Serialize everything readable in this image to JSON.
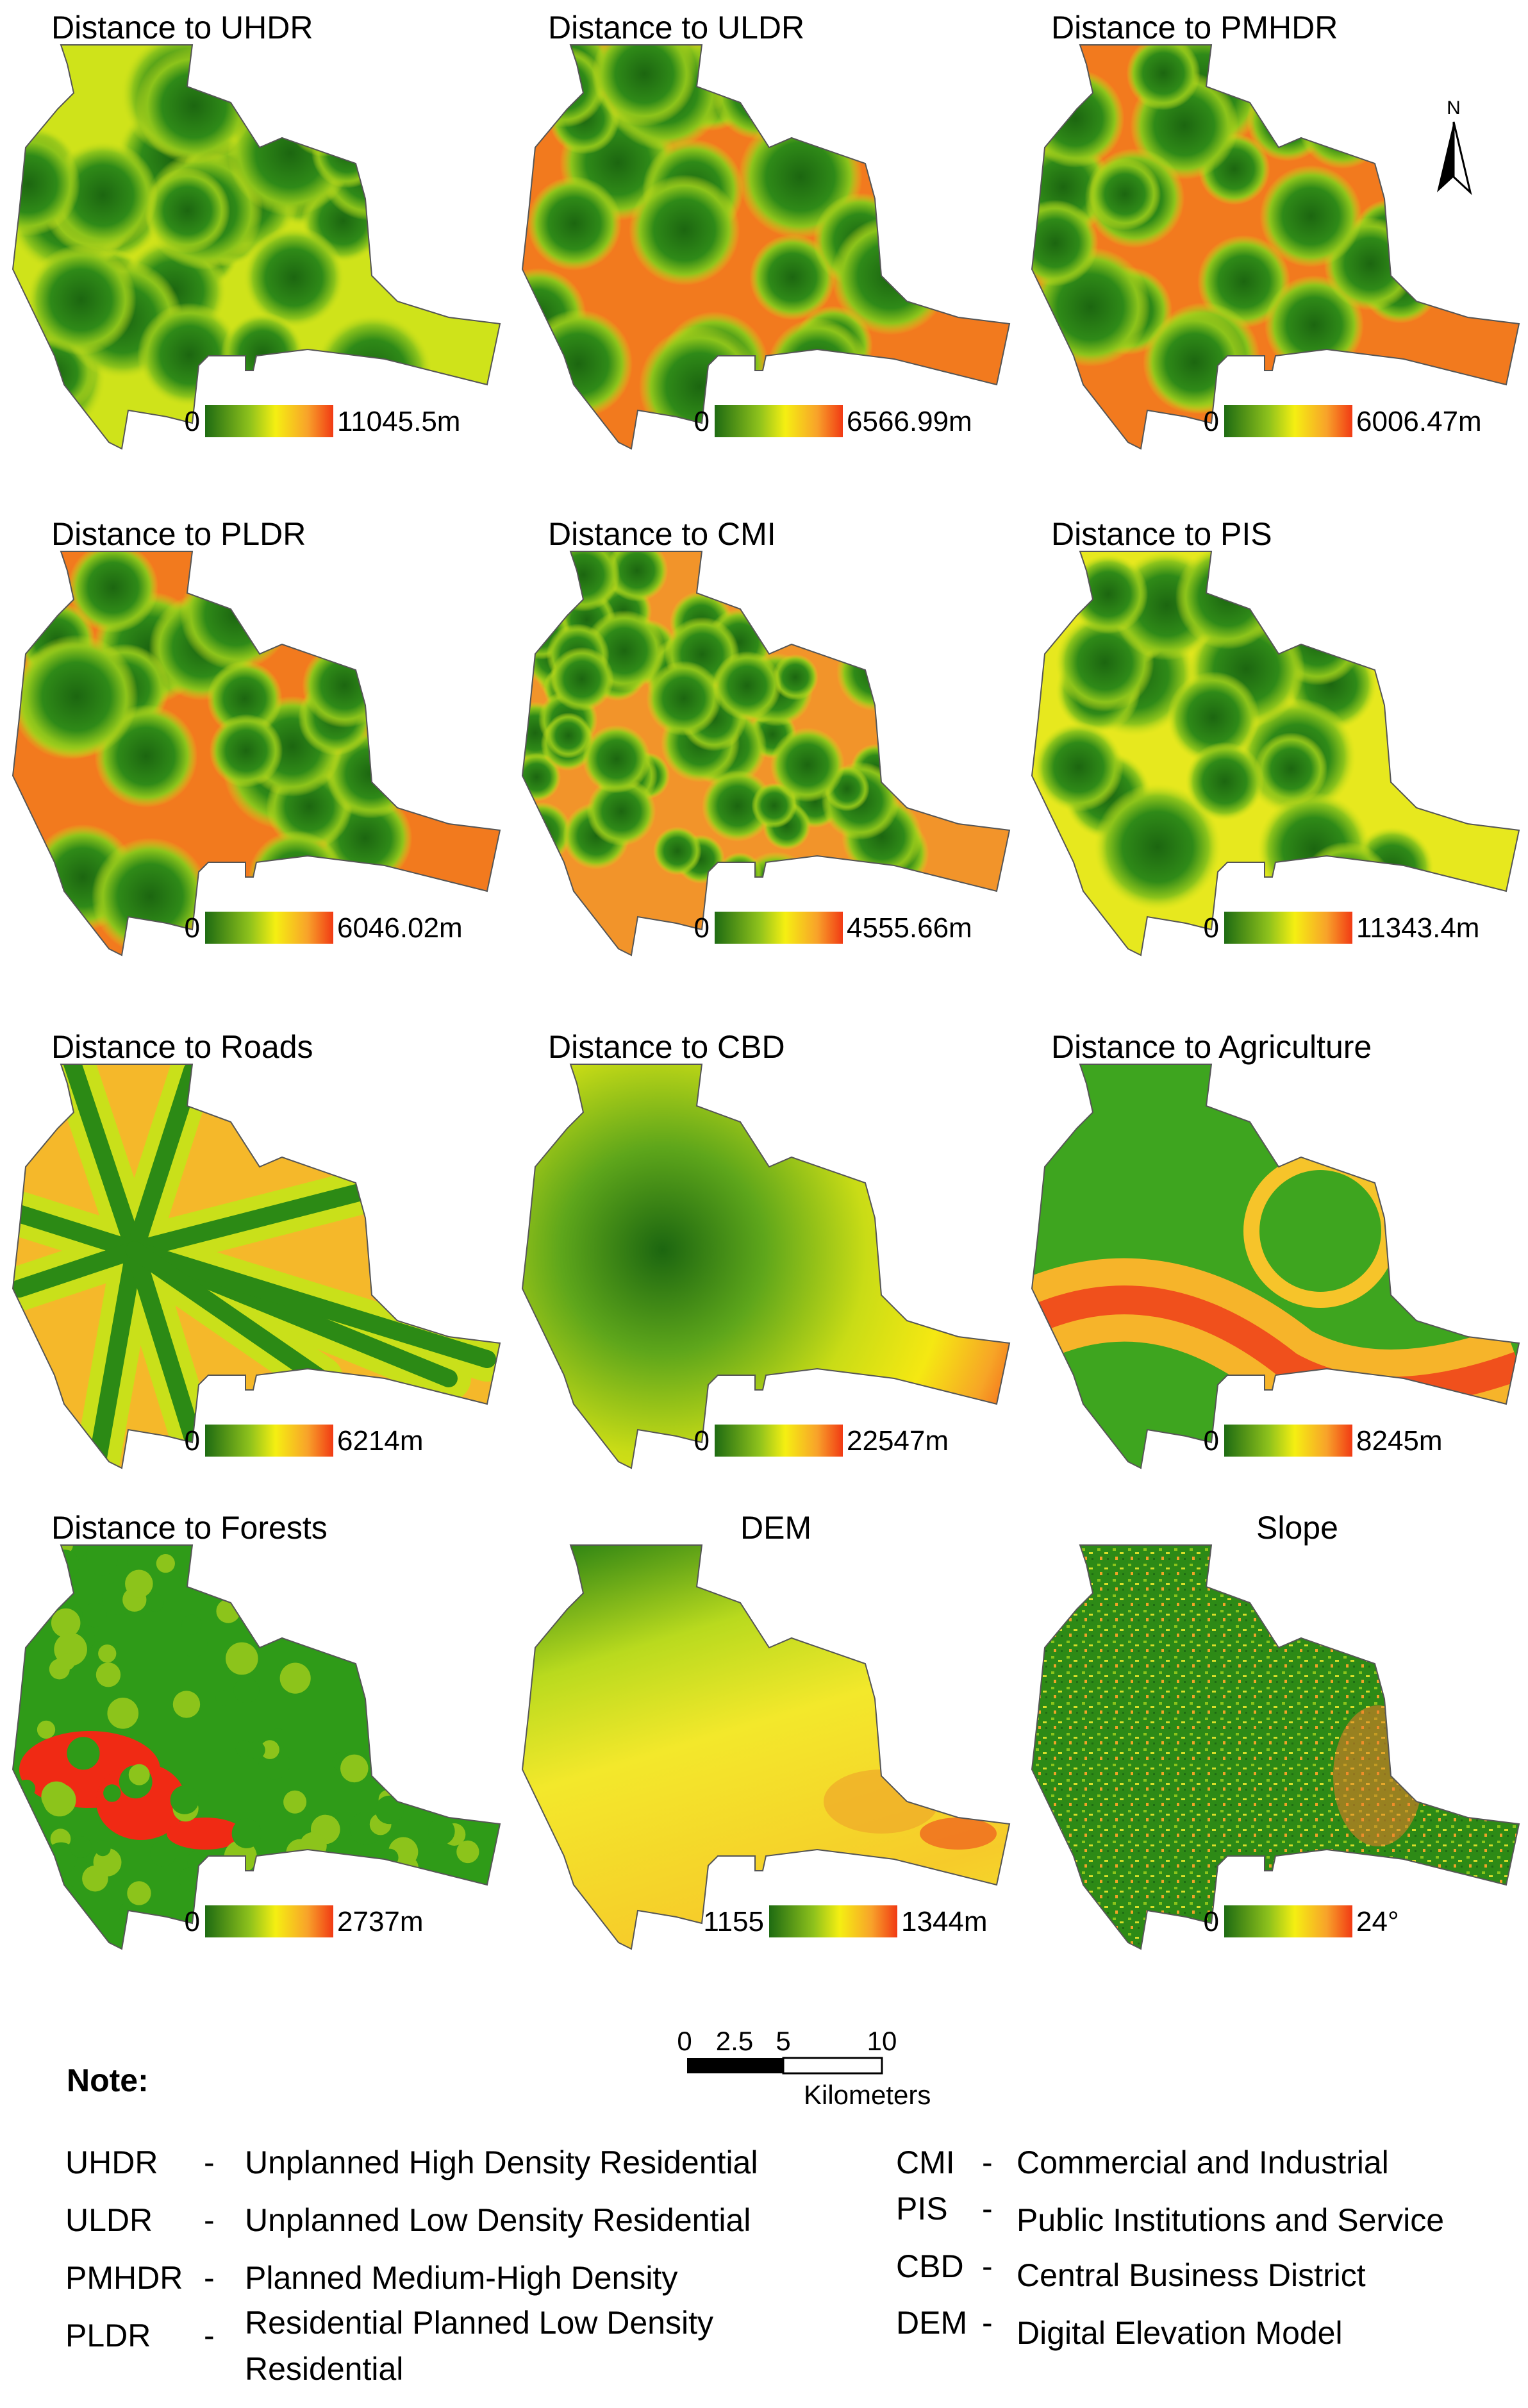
{
  "panels": [
    {
      "id": "uhdr",
      "title": "Distance to UHDR",
      "min": "0",
      "max": "11045.5m",
      "style": "buffer-green",
      "lowColor": "#1e6b12",
      "highColor": "#f13a14"
    },
    {
      "id": "uldr",
      "title": "Distance to ULDR",
      "min": "0",
      "max": "6566.99m",
      "style": "buffer-red",
      "lowColor": "#1e6b12",
      "highColor": "#f13a14"
    },
    {
      "id": "pmhdr",
      "title": "Distance to PMHDR",
      "min": "0",
      "max": "6006.47m",
      "style": "buffer-red",
      "lowColor": "#1e6b12",
      "highColor": "#f13a14"
    },
    {
      "id": "pldr",
      "title": "Distance to PLDR",
      "min": "0",
      "max": "6046.02m",
      "style": "buffer-red",
      "lowColor": "#1e6b12",
      "highColor": "#f13a14"
    },
    {
      "id": "cmi",
      "title": "Distance to CMI",
      "min": "0",
      "max": "4555.66m",
      "style": "buffer-dense",
      "lowColor": "#1e6b12",
      "highColor": "#f13a14"
    },
    {
      "id": "pis",
      "title": "Distance to PIS",
      "min": "0",
      "max": "11343.4m",
      "style": "buffer-yellow",
      "lowColor": "#1e6b12",
      "highColor": "#f13a14"
    },
    {
      "id": "roads",
      "title": "Distance to Roads",
      "min": "0",
      "max": "6214m",
      "style": "roads",
      "lowColor": "#1e6b12",
      "highColor": "#f13a14"
    },
    {
      "id": "cbd",
      "title": "Distance to CBD",
      "min": "0",
      "max": "22547m",
      "style": "cbd",
      "lowColor": "#1e6b12",
      "highColor": "#f13a14"
    },
    {
      "id": "agriculture",
      "title": "Distance to Agriculture",
      "min": "0",
      "max": "8245m",
      "style": "agriculture",
      "lowColor": "#1e6b12",
      "highColor": "#f13a14"
    },
    {
      "id": "forests",
      "title": "Distance to Forests",
      "min": "0",
      "max": "2737m",
      "style": "forests",
      "lowColor": "#1e6b12",
      "highColor": "#f13a14"
    },
    {
      "id": "dem",
      "title": "DEM",
      "min": "1155",
      "max": "1344m",
      "style": "dem",
      "lowColor": "#1e6b12",
      "highColor": "#f13a14"
    },
    {
      "id": "slope",
      "title": "Slope",
      "min": "0",
      "max": "24°",
      "style": "slope",
      "lowColor": "#1e6b12",
      "highColor": "#f13a14"
    }
  ],
  "north_arrow": {
    "label": "N",
    "icon": "north-arrow-icon"
  },
  "scale_bar": {
    "ticks": [
      "0",
      "2.5",
      "5",
      "10"
    ],
    "unit": "Kilometers"
  },
  "note": {
    "heading": "Note:",
    "left": [
      {
        "abbr": "UHDR",
        "dash": "-",
        "text": "Unplanned High Density Residential"
      },
      {
        "abbr": "ULDR",
        "dash": "-",
        "text": "Unplanned Low Density Residential"
      },
      {
        "abbr": "PMHDR",
        "dash": "-",
        "text": "Planned Medium-High Density"
      },
      {
        "abbr": "PLDR",
        "dash": "-",
        "text": "Residential Planned Low Density",
        "text2": "Residential"
      }
    ],
    "right": [
      {
        "abbr": "CMI",
        "dash": "-",
        "text": "Commercial and Industrial"
      },
      {
        "abbr": "PIS",
        "dash": "-",
        "text": "Public Institutions and Service"
      },
      {
        "abbr": "CBD",
        "dash": "-",
        "text": "Central Business District"
      },
      {
        "abbr": "DEM",
        "dash": "-",
        "text": "Digital Elevation Model"
      }
    ]
  }
}
